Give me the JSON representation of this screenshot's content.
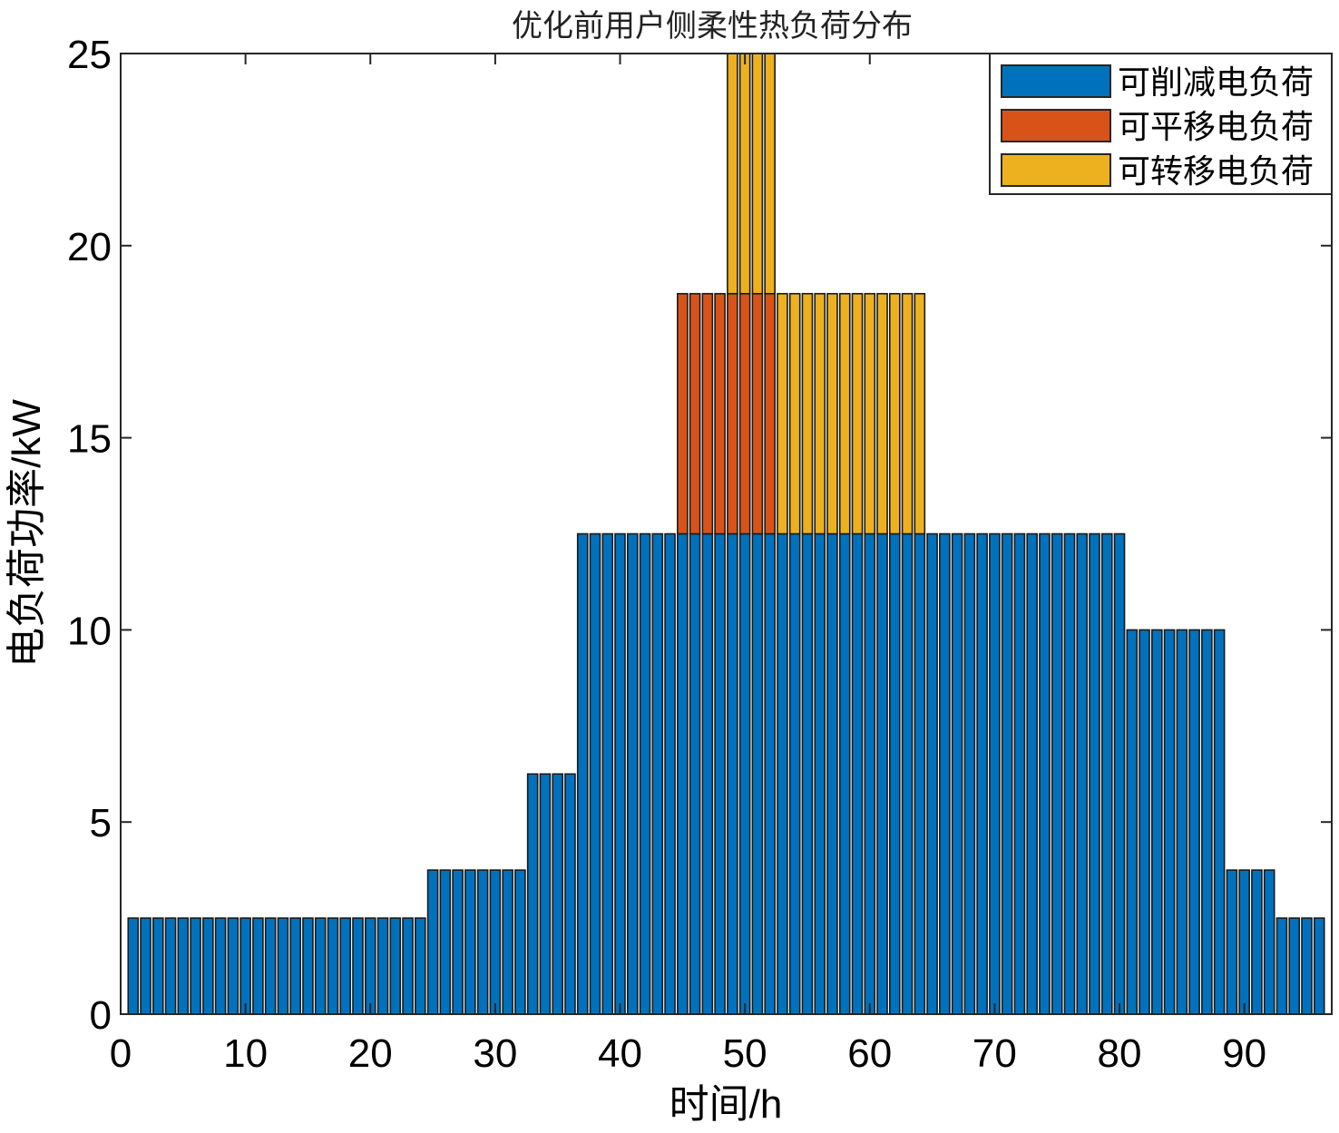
{
  "chart_data": {
    "type": "bar",
    "stacked": true,
    "title": "优化前用户侧柔性热负荷分布",
    "xlabel": "时间/h",
    "ylabel": "电负荷功率/kW",
    "xlim": [
      0,
      97
    ],
    "ylim": [
      0,
      25
    ],
    "xticks": [
      0,
      10,
      20,
      30,
      40,
      50,
      60,
      70,
      80,
      90
    ],
    "yticks": [
      0,
      5,
      10,
      15,
      20,
      25
    ],
    "x": [
      1,
      2,
      3,
      4,
      5,
      6,
      7,
      8,
      9,
      10,
      11,
      12,
      13,
      14,
      15,
      16,
      17,
      18,
      19,
      20,
      21,
      22,
      23,
      24,
      25,
      26,
      27,
      28,
      29,
      30,
      31,
      32,
      33,
      34,
      35,
      36,
      37,
      38,
      39,
      40,
      41,
      42,
      43,
      44,
      45,
      46,
      47,
      48,
      49,
      50,
      51,
      52,
      53,
      54,
      55,
      56,
      57,
      58,
      59,
      60,
      61,
      62,
      63,
      64,
      65,
      66,
      67,
      68,
      69,
      70,
      71,
      72,
      73,
      74,
      75,
      76,
      77,
      78,
      79,
      80,
      81,
      82,
      83,
      84,
      85,
      86,
      87,
      88,
      89,
      90,
      91,
      92,
      93,
      94,
      95,
      96
    ],
    "series": [
      {
        "name": "可削减电负荷",
        "color": "#0072BD",
        "values": [
          2.5,
          2.5,
          2.5,
          2.5,
          2.5,
          2.5,
          2.5,
          2.5,
          2.5,
          2.5,
          2.5,
          2.5,
          2.5,
          2.5,
          2.5,
          2.5,
          2.5,
          2.5,
          2.5,
          2.5,
          2.5,
          2.5,
          2.5,
          2.5,
          3.75,
          3.75,
          3.75,
          3.75,
          3.75,
          3.75,
          3.75,
          3.75,
          6.25,
          6.25,
          6.25,
          6.25,
          12.5,
          12.5,
          12.5,
          12.5,
          12.5,
          12.5,
          12.5,
          12.5,
          12.5,
          12.5,
          12.5,
          12.5,
          12.5,
          12.5,
          12.5,
          12.5,
          12.5,
          12.5,
          12.5,
          12.5,
          12.5,
          12.5,
          12.5,
          12.5,
          12.5,
          12.5,
          12.5,
          12.5,
          12.5,
          12.5,
          12.5,
          12.5,
          12.5,
          12.5,
          12.5,
          12.5,
          12.5,
          12.5,
          12.5,
          12.5,
          12.5,
          12.5,
          12.5,
          12.5,
          10,
          10,
          10,
          10,
          10,
          10,
          10,
          10,
          3.75,
          3.75,
          3.75,
          3.75,
          2.5,
          2.5,
          2.5,
          2.5
        ]
      },
      {
        "name": "可平移电负荷",
        "color": "#D95319",
        "values": [
          0,
          0,
          0,
          0,
          0,
          0,
          0,
          0,
          0,
          0,
          0,
          0,
          0,
          0,
          0,
          0,
          0,
          0,
          0,
          0,
          0,
          0,
          0,
          0,
          0,
          0,
          0,
          0,
          0,
          0,
          0,
          0,
          0,
          0,
          0,
          0,
          0,
          0,
          0,
          0,
          0,
          0,
          0,
          0,
          6.25,
          6.25,
          6.25,
          6.25,
          6.25,
          6.25,
          6.25,
          6.25,
          0,
          0,
          0,
          0,
          0,
          0,
          0,
          0,
          0,
          0,
          0,
          0,
          0,
          0,
          0,
          0,
          0,
          0,
          0,
          0,
          0,
          0,
          0,
          0,
          0,
          0,
          0,
          0,
          0,
          0,
          0,
          0,
          0,
          0,
          0,
          0,
          0,
          0,
          0,
          0,
          0,
          0,
          0,
          0
        ]
      },
      {
        "name": "可转移电负荷",
        "color": "#EDB120",
        "values": [
          0,
          0,
          0,
          0,
          0,
          0,
          0,
          0,
          0,
          0,
          0,
          0,
          0,
          0,
          0,
          0,
          0,
          0,
          0,
          0,
          0,
          0,
          0,
          0,
          0,
          0,
          0,
          0,
          0,
          0,
          0,
          0,
          0,
          0,
          0,
          0,
          0,
          0,
          0,
          0,
          0,
          0,
          0,
          0,
          0,
          0,
          0,
          0,
          6.25,
          6.25,
          6.25,
          6.25,
          6.25,
          6.25,
          6.25,
          6.25,
          6.25,
          6.25,
          6.25,
          6.25,
          6.25,
          6.25,
          6.25,
          6.25,
          0,
          0,
          0,
          0,
          0,
          0,
          0,
          0,
          0,
          0,
          0,
          0,
          0,
          0,
          0,
          0,
          0,
          0,
          0,
          0,
          0,
          0,
          0,
          0,
          0,
          0,
          0,
          0,
          0,
          0,
          0,
          0
        ]
      }
    ],
    "grid": false,
    "legend_position": "top-right"
  }
}
